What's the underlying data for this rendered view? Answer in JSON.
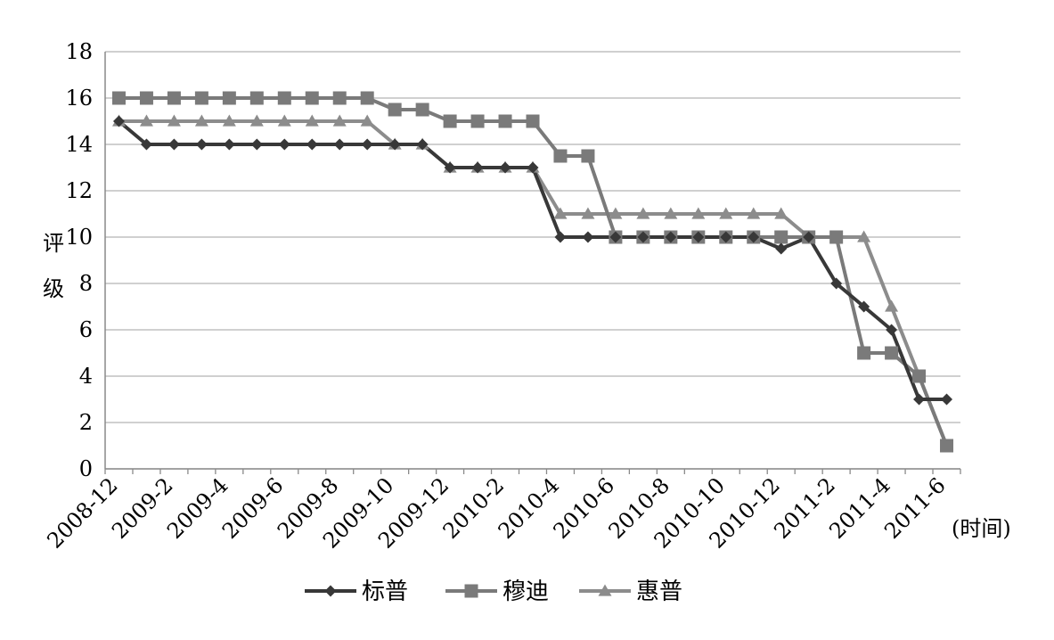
{
  "chart_data": {
    "type": "line",
    "title": "",
    "ylabel": "评级",
    "xlabel": "(时间)",
    "ylim": [
      0,
      18
    ],
    "yticks": [
      0,
      2,
      4,
      6,
      8,
      10,
      12,
      14,
      16,
      18
    ],
    "grid": true,
    "legend_position": "bottom",
    "x_tick_labels": [
      "2008-12",
      "2009-2",
      "2009-4",
      "2009-6",
      "2009-8",
      "2009-10",
      "2009-12",
      "2010-2",
      "2010-4",
      "2010-6",
      "2010-8",
      "2010-10",
      "2010-12",
      "2011-2",
      "2011-4",
      "2011-6"
    ],
    "x": [
      "2008-12",
      "2009-1",
      "2009-2",
      "2009-3",
      "2009-4",
      "2009-5",
      "2009-6",
      "2009-7",
      "2009-8",
      "2009-9",
      "2009-10",
      "2009-11",
      "2009-12",
      "2010-1",
      "2010-2",
      "2010-3",
      "2010-4",
      "2010-5",
      "2010-6",
      "2010-7",
      "2010-8",
      "2010-9",
      "2010-10",
      "2010-11",
      "2010-12",
      "2011-1",
      "2011-2",
      "2011-3",
      "2011-4",
      "2011-5",
      "2011-6"
    ],
    "series": [
      {
        "name": "标普",
        "color": "#383838",
        "marker": "diamond",
        "values": [
          15,
          14,
          14,
          14,
          14,
          14,
          14,
          14,
          14,
          14,
          14,
          14,
          13,
          13,
          13,
          13,
          10,
          10,
          10,
          10,
          10,
          10,
          10,
          10,
          9.5,
          10,
          8,
          7,
          6,
          3,
          3
        ]
      },
      {
        "name": "穆迪",
        "color": "#7a7a7a",
        "marker": "square",
        "values": [
          16,
          16,
          16,
          16,
          16,
          16,
          16,
          16,
          16,
          16,
          15.5,
          15.5,
          15,
          15,
          15,
          15,
          13.5,
          13.5,
          10,
          10,
          10,
          10,
          10,
          10,
          10,
          10,
          10,
          5,
          5,
          4,
          1
        ]
      },
      {
        "name": "惠普",
        "color": "#8c8c8c",
        "marker": "triangle",
        "values": [
          15,
          15,
          15,
          15,
          15,
          15,
          15,
          15,
          15,
          15,
          14,
          14,
          13,
          13,
          13,
          13,
          11,
          11,
          11,
          11,
          11,
          11,
          11,
          11,
          11,
          10,
          10,
          10,
          7,
          4,
          1
        ]
      }
    ]
  }
}
